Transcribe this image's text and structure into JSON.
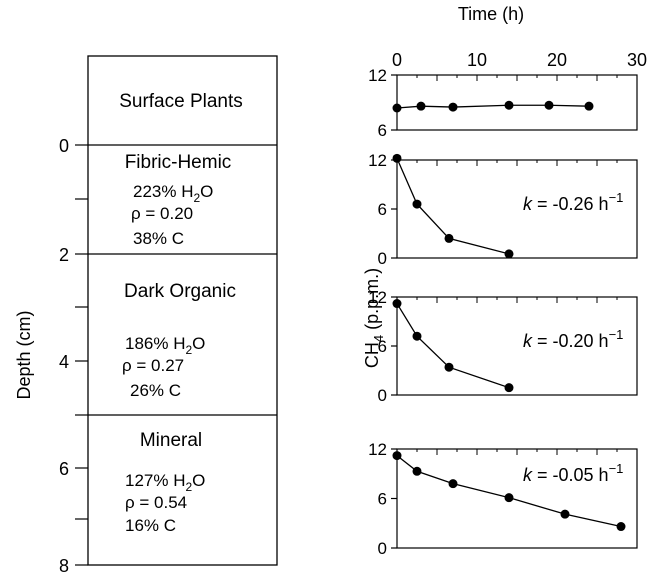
{
  "profile": {
    "depth_axis_label": "Depth (cm)",
    "depth_ticks": [
      "0",
      "2",
      "4",
      "6",
      "8"
    ],
    "layers": [
      {
        "name": "Surface Plants"
      },
      {
        "name": "Fibric-Hemic",
        "water": "223% H",
        "water_sub": "2",
        "water_tail": "O",
        "density": "ρ = 0.20",
        "carbon": "38% C"
      },
      {
        "name": "Dark Organic",
        "water": "186% H",
        "water_sub": "2",
        "water_tail": "O",
        "density": "ρ = 0.27",
        "carbon": "26% C"
      },
      {
        "name": "Mineral",
        "water": "127% H",
        "water_sub": "2",
        "water_tail": "O",
        "density": "ρ = 0.54",
        "carbon": "16% C"
      }
    ]
  },
  "chart_data": {
    "type": "line",
    "xlabel": "Time (h)",
    "ylabel_main": "CH",
    "ylabel_sub": "4",
    "ylabel_tail": " (p.p.m.)",
    "x_ticks": [
      "0",
      "10",
      "20",
      "30"
    ],
    "xlim": [
      0,
      30
    ],
    "grid": false,
    "panels": [
      {
        "ylim": [
          6,
          12
        ],
        "y_ticks": [
          "12",
          "6"
        ],
        "x": [
          0,
          3,
          7,
          14,
          19,
          24
        ],
        "y": [
          8.4,
          8.6,
          8.5,
          8.7,
          8.7,
          8.6
        ],
        "annotation": null
      },
      {
        "ylim": [
          0,
          12
        ],
        "y_ticks": [
          "12",
          "6",
          "0"
        ],
        "x": [
          0,
          2.5,
          6.5,
          14
        ],
        "y": [
          12.2,
          6.6,
          2.4,
          0.5
        ],
        "annotation": {
          "k": "k",
          "eq": " = -0.26 h",
          "exp": "−1"
        }
      },
      {
        "ylim": [
          0,
          12
        ],
        "y_ticks": [
          "12",
          "6",
          "0"
        ],
        "x": [
          0,
          2.5,
          6.5,
          14
        ],
        "y": [
          11.2,
          7.2,
          3.4,
          0.9
        ],
        "annotation": {
          "k": "k",
          "eq": " = -0.20 h",
          "exp": "−1"
        }
      },
      {
        "ylim": [
          0,
          12
        ],
        "y_ticks": [
          "12",
          "6",
          "0"
        ],
        "x": [
          0,
          2.5,
          7,
          14,
          21,
          28
        ],
        "y": [
          11.2,
          9.3,
          7.8,
          6.1,
          4.1,
          2.6
        ],
        "annotation": {
          "k": "k",
          "eq": " = -0.05 h",
          "exp": "−1"
        }
      }
    ]
  }
}
